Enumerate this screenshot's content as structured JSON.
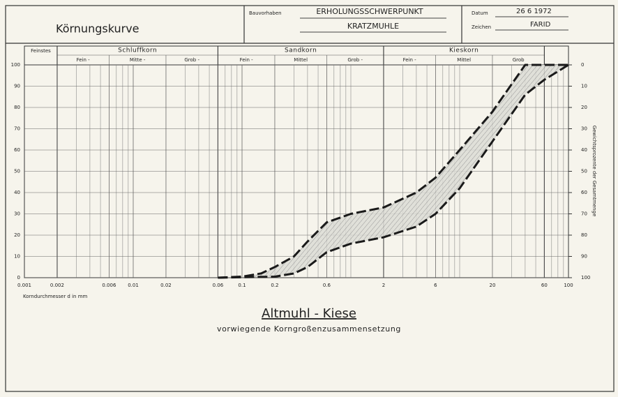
{
  "header": {
    "title": "Körnungskurve",
    "project_label": "Bauvorhaben",
    "project": "ERHOLUNGSSCHWERPUNKT",
    "location": "KRATZMUHLE",
    "date_label": "Datum",
    "date": "26 6 1972",
    "drawn_label": "Zeichen",
    "drawn_by": "FARID"
  },
  "fractions": {
    "finest": "Feinstes",
    "silt": {
      "name": "Schluffkorn",
      "parts": [
        "Fein -",
        "Mitte -",
        "Grob -"
      ]
    },
    "sand": {
      "name": "Sandkorn",
      "parts": [
        "Fein -",
        "Mittel",
        "Grob -"
      ]
    },
    "gravel": {
      "name": "Kieskorn",
      "parts": [
        "Fein -",
        "Mittel",
        "Grob"
      ]
    }
  },
  "chart_data": {
    "type": "line",
    "title": "Altmuhl - Kiese",
    "subtitle": "vorwiegende Korngroßenzusammensetzung",
    "x_label": "Korndurchmesser d in mm",
    "y2_label": "Gewichtsprozente der Gesamtmenge",
    "log_x": true,
    "grid": true,
    "xlim": [
      0.001,
      100
    ],
    "xticks": [
      0.001,
      0.002,
      0.006,
      0.01,
      0.02,
      0.06,
      0.1,
      0.2,
      0.6,
      2,
      6,
      20,
      60,
      100
    ],
    "x_minor_grid": [
      0.003,
      0.004,
      0.005,
      0.007,
      0.008,
      0.009,
      0.03,
      0.04,
      0.05,
      0.07,
      0.08,
      0.09,
      0.3,
      0.4,
      0.5,
      0.7,
      0.8,
      0.9,
      1,
      3,
      4,
      5,
      7,
      8,
      9,
      10,
      30,
      40,
      50,
      70,
      80,
      90
    ],
    "ylim": [
      0,
      100
    ],
    "yticks": [
      0,
      10,
      20,
      30,
      40,
      50,
      60,
      70,
      80,
      90,
      100
    ],
    "y2lim": [
      100,
      0
    ],
    "y2ticks": [
      0,
      10,
      20,
      30,
      40,
      50,
      60,
      70,
      80,
      90,
      100
    ],
    "band_color": "#9a9a9a",
    "series": [
      {
        "color": "#1a1a1a",
        "x": [
          0.06,
          0.1,
          0.15,
          0.2,
          0.3,
          0.4,
          0.6,
          1,
          2,
          4,
          6,
          10,
          20,
          40,
          100
        ],
        "values": [
          0,
          0.5,
          2,
          5,
          10,
          17,
          26,
          30,
          33,
          40,
          47,
          60,
          78,
          100,
          100
        ]
      },
      {
        "color": "#1a1a1a",
        "x": [
          0.06,
          0.2,
          0.3,
          0.4,
          0.6,
          1,
          2,
          4,
          6,
          10,
          20,
          40,
          60,
          100
        ],
        "values": [
          0,
          0.5,
          2,
          5,
          12,
          16,
          19,
          24,
          30,
          42,
          64,
          86,
          93,
          100
        ]
      }
    ]
  }
}
